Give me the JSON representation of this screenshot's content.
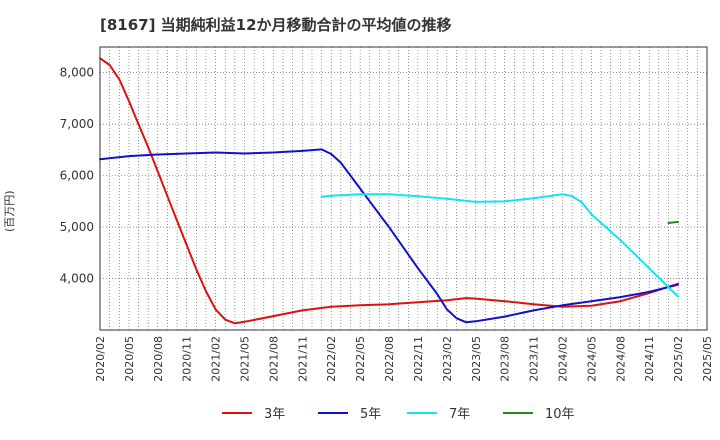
{
  "chart_data": {
    "type": "line",
    "title": "[8167]  当期純利益12か月移動合計の平均値の推移",
    "ylabel": "(百万円)",
    "xlabel": "",
    "ylim": [
      3000,
      8500
    ],
    "y_ticks": [
      4000,
      5000,
      6000,
      7000,
      8000
    ],
    "y_tick_labels": [
      "4,000",
      "5,000",
      "6,000",
      "7,000",
      "8,000"
    ],
    "x_range": [
      "2020/02",
      "2025/05"
    ],
    "x_tick_labels": [
      "2020/02",
      "2020/05",
      "2020/08",
      "2020/11",
      "2021/02",
      "2021/05",
      "2021/08",
      "2021/11",
      "2022/02",
      "2022/05",
      "2022/08",
      "2022/11",
      "2023/02",
      "2023/05",
      "2023/08",
      "2023/11",
      "2024/02",
      "2024/05",
      "2024/08",
      "2024/11",
      "2025/02",
      "2025/05"
    ],
    "grid": true,
    "legend_position": "bottom",
    "series": [
      {
        "name": "3年",
        "color": "#dd1111",
        "points": [
          [
            "2020/02",
            8280
          ],
          [
            "2020/03",
            8150
          ],
          [
            "2020/04",
            7870
          ],
          [
            "2020/05",
            7450
          ],
          [
            "2020/06",
            7000
          ],
          [
            "2020/07",
            6550
          ],
          [
            "2020/08",
            6080
          ],
          [
            "2020/09",
            5600
          ],
          [
            "2020/10",
            5120
          ],
          [
            "2020/11",
            4650
          ],
          [
            "2020/12",
            4180
          ],
          [
            "2021/01",
            3750
          ],
          [
            "2021/02",
            3400
          ],
          [
            "2021/03",
            3200
          ],
          [
            "2021/04",
            3130
          ],
          [
            "2021/05",
            3160
          ],
          [
            "2021/08",
            3270
          ],
          [
            "2021/11",
            3380
          ],
          [
            "2022/02",
            3450
          ],
          [
            "2022/05",
            3480
          ],
          [
            "2022/08",
            3500
          ],
          [
            "2022/11",
            3540
          ],
          [
            "2023/02",
            3580
          ],
          [
            "2023/04",
            3620
          ],
          [
            "2023/05",
            3610
          ],
          [
            "2023/08",
            3560
          ],
          [
            "2023/11",
            3500
          ],
          [
            "2024/02",
            3450
          ],
          [
            "2024/05",
            3470
          ],
          [
            "2024/08",
            3560
          ],
          [
            "2024/11",
            3720
          ],
          [
            "2025/02",
            3900
          ]
        ]
      },
      {
        "name": "5年",
        "color": "#1111cc",
        "points": [
          [
            "2020/02",
            6320
          ],
          [
            "2020/05",
            6380
          ],
          [
            "2020/08",
            6410
          ],
          [
            "2020/11",
            6430
          ],
          [
            "2021/02",
            6450
          ],
          [
            "2021/05",
            6430
          ],
          [
            "2021/08",
            6450
          ],
          [
            "2021/11",
            6480
          ],
          [
            "2022/01",
            6510
          ],
          [
            "2022/02",
            6420
          ],
          [
            "2022/03",
            6250
          ],
          [
            "2022/05",
            5750
          ],
          [
            "2022/08",
            5000
          ],
          [
            "2022/11",
            4200
          ],
          [
            "2023/01",
            3700
          ],
          [
            "2023/02",
            3400
          ],
          [
            "2023/03",
            3230
          ],
          [
            "2023/04",
            3150
          ],
          [
            "2023/05",
            3170
          ],
          [
            "2023/08",
            3260
          ],
          [
            "2023/11",
            3380
          ],
          [
            "2024/02",
            3480
          ],
          [
            "2024/05",
            3560
          ],
          [
            "2024/08",
            3640
          ],
          [
            "2024/11",
            3740
          ],
          [
            "2025/02",
            3880
          ]
        ]
      },
      {
        "name": "7年",
        "color": "#11e6ee",
        "points": [
          [
            "2022/01",
            5590
          ],
          [
            "2022/02",
            5610
          ],
          [
            "2022/05",
            5640
          ],
          [
            "2022/08",
            5640
          ],
          [
            "2022/11",
            5600
          ],
          [
            "2023/02",
            5550
          ],
          [
            "2023/05",
            5490
          ],
          [
            "2023/08",
            5500
          ],
          [
            "2023/11",
            5560
          ],
          [
            "2024/02",
            5640
          ],
          [
            "2024/03",
            5600
          ],
          [
            "2024/04",
            5480
          ],
          [
            "2024/05",
            5250
          ],
          [
            "2024/08",
            4750
          ],
          [
            "2024/11",
            4200
          ],
          [
            "2025/02",
            3650
          ]
        ]
      },
      {
        "name": "10年",
        "color": "#228822",
        "points": [
          [
            "2025/01",
            5080
          ],
          [
            "2025/02",
            5100
          ]
        ]
      }
    ]
  }
}
